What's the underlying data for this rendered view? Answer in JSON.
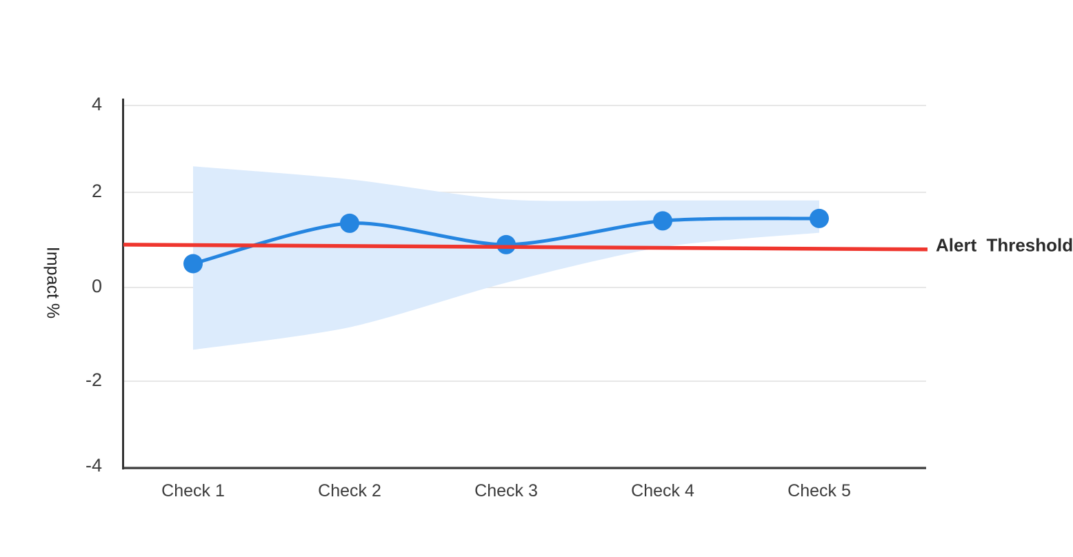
{
  "chart_data": {
    "type": "line",
    "title": "",
    "categories": [
      "Check 1",
      "Check 2",
      "Check 3",
      "Check 4",
      "Check 5"
    ],
    "series": [
      {
        "name": "Impact",
        "values": [
          0.5,
          1.35,
          0.9,
          1.4,
          1.45
        ]
      },
      {
        "name": "Confidence band upper",
        "values": [
          2.6,
          2.3,
          1.85,
          1.83,
          1.83
        ]
      },
      {
        "name": "Confidence band lower",
        "values": [
          -1.33,
          -0.85,
          0.1,
          0.85,
          1.15
        ]
      }
    ],
    "threshold": {
      "label": "Alert  Threshold",
      "value_start": 0.9,
      "value_end": 0.8
    },
    "xlabel": "",
    "ylabel": "Impact %",
    "yticks": [
      "4",
      "2",
      "0",
      "-2",
      "-4"
    ],
    "ylim": [
      -4,
      4
    ],
    "grid": "horizontal",
    "legend": "none",
    "colors": {
      "line": "#2585e0",
      "band": "#dcebfc",
      "threshold": "#ef362e",
      "grid": "#e7e7e7",
      "axis": "#333333",
      "tick_text": "#3c3c3c"
    }
  }
}
